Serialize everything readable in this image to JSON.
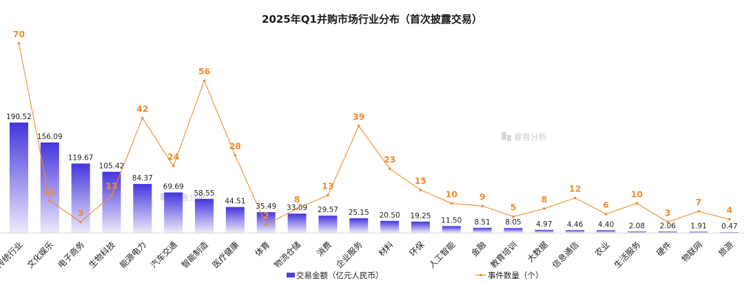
{
  "chart_data": {
    "type": "bar",
    "title": "2025年Q1并购市场行业分布（首次披露交易）",
    "categories": [
      "传统行业",
      "文化娱乐",
      "电子商务",
      "生物科技",
      "能源电力",
      "汽车交通",
      "智能制造",
      "医疗健康",
      "体育",
      "物流仓储",
      "消费",
      "企业服务",
      "材料",
      "环保",
      "人工智能",
      "金融",
      "教育培训",
      "大数据",
      "信息通信",
      "农业",
      "生活服务",
      "硬件",
      "物联网",
      "旅游"
    ],
    "series": [
      {
        "name": "交易金额（亿元人民币）",
        "type": "bar",
        "color": "#4a3fe0",
        "values": [
          190.52,
          156.09,
          119.67,
          105.42,
          84.37,
          69.69,
          58.55,
          44.51,
          35.49,
          33.09,
          29.57,
          25.15,
          20.5,
          19.25,
          11.5,
          8.51,
          8.05,
          4.97,
          4.46,
          4.4,
          2.08,
          2.06,
          1.91,
          0.47
        ],
        "labels": [
          "190.52",
          "156.09",
          "119.67",
          "105.42",
          "84.37",
          "69.69",
          "58.55",
          "44.51",
          "35.49",
          "33.09",
          "29.57",
          "25.15",
          "20.50",
          "19.25",
          "11.50",
          "8.51",
          "8.05",
          "4.97",
          "4.46",
          "4.40",
          "2.08",
          "2.06",
          "1.91",
          "0.47"
        ]
      },
      {
        "name": "事件数量（个）",
        "type": "line",
        "color": "#f08a2a",
        "values": [
          70,
          11,
          3,
          13,
          42,
          24,
          56,
          28,
          2,
          8,
          13,
          39,
          23,
          15,
          10,
          9,
          5,
          8,
          12,
          6,
          10,
          3,
          7,
          4
        ]
      }
    ],
    "legend": "bottom",
    "watermark": "睿兽分析",
    "ylim_bar": [
      0,
      250
    ],
    "ylim_line": [
      0,
      70
    ]
  }
}
